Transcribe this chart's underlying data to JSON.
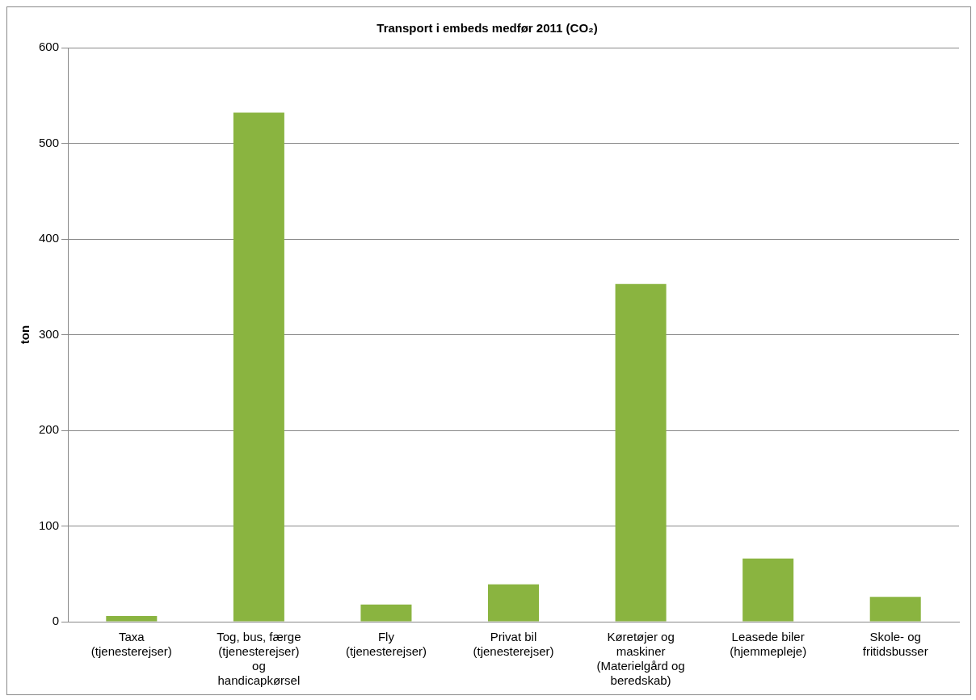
{
  "chart_data": {
    "type": "bar",
    "title": "Transport i embeds medfør 2011 (CO₂)",
    "ylabel": "ton",
    "categories": [
      "Taxa (tjenesterejser)",
      "Tog, bus, færge (tjenesterejser) og handicapkørsel",
      "Fly (tjenesterejser)",
      "Privat bil (tjenesterejser)",
      "Køretøjer og maskiner (Materielgård og beredskab)",
      "Leasede biler (hjemmepleje)",
      "Skole- og fritidsbusser"
    ],
    "values": [
      6,
      532,
      18,
      39,
      353,
      66,
      26
    ],
    "color": "#8ab440",
    "ylim": [
      0,
      600
    ],
    "yticks": [
      0,
      100,
      200,
      300,
      400,
      500,
      600
    ],
    "grid": "y",
    "legend": false
  }
}
